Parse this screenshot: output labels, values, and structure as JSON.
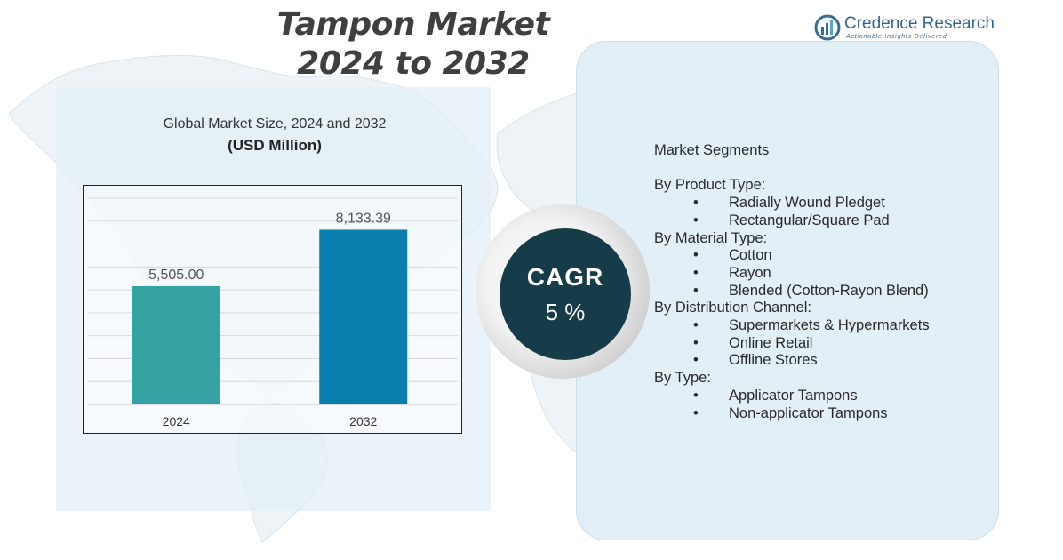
{
  "title": {
    "line1": "Tampon Market",
    "line2": "2024 to 2032"
  },
  "logo": {
    "name": "Credence Research",
    "tagline": "Actionable Insights Delivered"
  },
  "chart_heading": {
    "line1": "Global Market Size,  2024 and 2032",
    "line2": "(USD Million)"
  },
  "chart_data": {
    "type": "bar",
    "title": "Global Market Size,  2024 and 2032",
    "subtitle": "(USD Million)",
    "categories": [
      "2024",
      "2032"
    ],
    "values": [
      5505.0,
      8133.39
    ],
    "value_labels": [
      "5,505.00",
      "8,133.39"
    ],
    "colors": [
      "#35a3a4",
      "#0a7fae"
    ],
    "ylim": [
      0,
      9600
    ],
    "grid": true,
    "xlabel": "",
    "ylabel": ""
  },
  "cagr": {
    "label": "CAGR",
    "value": "5 %"
  },
  "segments": {
    "header": "Market Segments",
    "groups": [
      {
        "name": "By Product Type:",
        "items": [
          "Radially Wound Pledget",
          "Rectangular/Square Pad"
        ]
      },
      {
        "name": "By Material Type:",
        "items": [
          "Cotton",
          "Rayon",
          "Blended (Cotton-Rayon Blend)"
        ]
      },
      {
        "name": "By Distribution Channel:",
        "items": [
          "Supermarkets & Hypermarkets",
          "Online Retail",
          "Offline Stores"
        ]
      },
      {
        "name": "By Type:",
        "items": [
          "Applicator Tampons",
          "Non-applicator Tampons"
        ]
      }
    ]
  }
}
